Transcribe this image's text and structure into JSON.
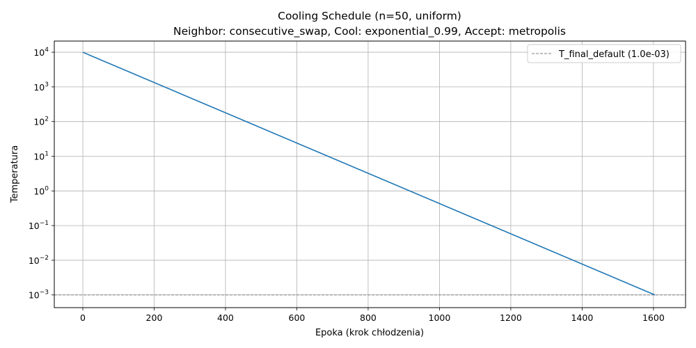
{
  "chart_data": {
    "type": "line",
    "title": "Cooling Schedule (n=50, uniform)",
    "subtitle": "Neighbor: consecutive_swap, Cool: exponential_0.99, Accept: metropolis",
    "xlabel": "Epoka (krok chłodzenia)",
    "ylabel": "Temperatura",
    "xscale": "linear",
    "yscale": "log",
    "xlim": [
      -80,
      1690
    ],
    "ylim": [
      0.00043,
      21000
    ],
    "xticks": [
      0,
      200,
      400,
      600,
      800,
      1000,
      1200,
      1400,
      1600
    ],
    "xtick_labels": [
      "0",
      "200",
      "400",
      "600",
      "800",
      "1000",
      "1200",
      "1400",
      "1600"
    ],
    "ytick_exponents": [
      4,
      3,
      2,
      1,
      0,
      -1,
      -2,
      -3
    ],
    "ytick_base": "10",
    "grid": true,
    "legend_position": "top-right",
    "series": [
      {
        "color": "#1f77b4",
        "style": "solid",
        "x": [
          0,
          1604
        ],
        "y": [
          10000,
          0.001
        ]
      }
    ],
    "reference_lines": [
      {
        "name": "T_final_default (1.0e-03)",
        "y": 0.001,
        "color": "#808080",
        "style": "dashed"
      }
    ]
  }
}
